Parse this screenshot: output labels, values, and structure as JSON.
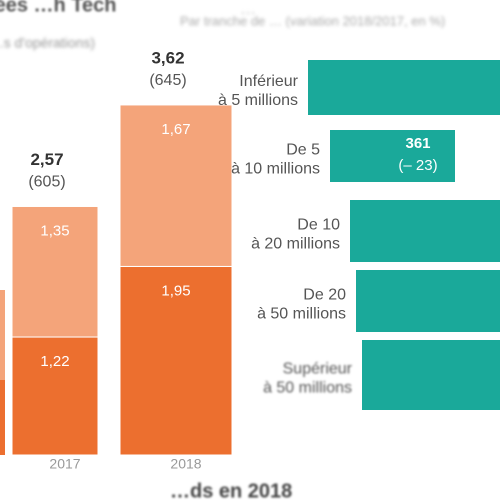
{
  "chart_data": [
    {
      "type": "stacked-bar",
      "title": "…vées …h Tech",
      "subtitle": "(…s d'opérations)",
      "categories": [
        "2017",
        "2018"
      ],
      "series": [
        {
          "color": "#ec6f2f",
          "values": [
            1.22,
            1.95
          ],
          "value_labels": [
            "1,22",
            "1,95"
          ]
        },
        {
          "color": "#f4a47a",
          "values": [
            1.35,
            1.67
          ],
          "value_labels": [
            "1,35",
            "1,67"
          ]
        }
      ],
      "totals": [
        2.57,
        3.62
      ],
      "total_labels": [
        "2,57",
        "3,62"
      ],
      "counts": [
        605,
        645
      ],
      "count_labels": [
        "(605)",
        "(645)"
      ],
      "footnote": "…ds en 2018"
    },
    {
      "type": "hbar",
      "title": "…",
      "subtitle": "Par tranche de … (variation 2018/2017, en %)",
      "categories": [
        "Inférieur\nà 5 millions",
        "De 5\nà 10 millions",
        "De 10\nà 20 millions",
        "De 20\nà 50 millions",
        "Supérieur\nà 50 millions"
      ],
      "color": "#1aa99a",
      "highlight": {
        "index": 1,
        "value": 361,
        "change": -23,
        "change_label": "(– 23)"
      }
    }
  ]
}
